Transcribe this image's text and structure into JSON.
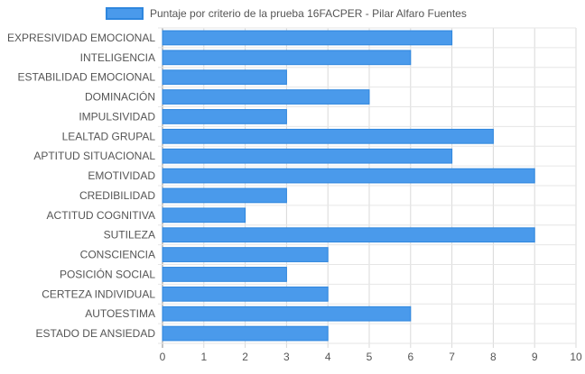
{
  "chart_data": {
    "type": "bar",
    "orientation": "horizontal",
    "title": "",
    "xlabel": "",
    "ylabel": "",
    "xlim": [
      0,
      10
    ],
    "x_ticks": [
      "0",
      "1",
      "2",
      "3",
      "4",
      "5",
      "6",
      "7",
      "8",
      "9",
      "10"
    ],
    "grid": true,
    "legend_position": "top",
    "categories": [
      "EXPRESIVIDAD EMOCIONAL",
      "INTELIGENCIA",
      "ESTABILIDAD EMOCIONAL",
      "DOMINACIÓN",
      "IMPULSIVIDAD",
      "LEALTAD GRUPAL",
      "APTITUD SITUACIONAL",
      "EMOTIVIDAD",
      "CREDIBILIDAD",
      "ACTITUD COGNITIVA",
      "SUTILEZA",
      "CONSCIENCIA",
      "POSICIÓN SOCIAL",
      "CERTEZA INDIVIDUAL",
      "AUTOESTIMA",
      "ESTADO DE ANSIEDAD"
    ],
    "series": [
      {
        "name": "Puntaje por criterio de la prueba 16FACPER - Pilar Alfaro Fuentes",
        "values": [
          7,
          6,
          3,
          5,
          3,
          8,
          7,
          9,
          3,
          2,
          9,
          4,
          3,
          4,
          6,
          4
        ],
        "color": "#4a9aeb",
        "border_color": "#2e86de"
      }
    ]
  }
}
